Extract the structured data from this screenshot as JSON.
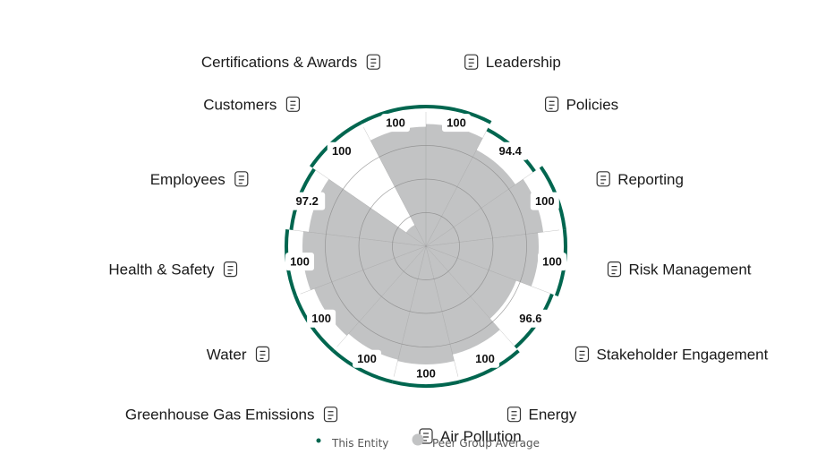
{
  "chart_data": {
    "type": "polar-area",
    "title": "",
    "rmax": 100,
    "categories": [
      "Leadership",
      "Policies",
      "Reporting",
      "Risk Management",
      "Stakeholder Engagement",
      "Energy",
      "Air Pollution",
      "Greenhouse Gas Emissions",
      "Water",
      "Health & Safety",
      "Employees",
      "Customers",
      "Certifications & Awards"
    ],
    "series": [
      {
        "name": "This Entity",
        "values": [
          100,
          94.4,
          100,
          100,
          96.6,
          100,
          100,
          100,
          100,
          100,
          97.2,
          100,
          100
        ]
      },
      {
        "name": "Peer Group Average",
        "values": [
          91,
          81,
          88,
          84,
          72,
          83,
          88,
          87,
          89,
          92,
          88,
          18,
          89
        ]
      }
    ],
    "value_labels": [
      "100",
      "94.4",
      "100",
      "100",
      "96.6",
      "100",
      "100",
      "100",
      "100",
      "100",
      "97.2",
      "100",
      "100"
    ],
    "icons": [
      "leadership-icon",
      "policies-icon",
      "reporting-icon",
      "risk-management-icon",
      "stakeholder-engagement-icon",
      "energy-icon",
      "air-pollution-icon",
      "greenhouse-gas-emissions-icon",
      "water-icon",
      "health-safety-icon",
      "employees-icon",
      "customers-icon",
      "certifications-awards-icon"
    ],
    "legend": {
      "placement": "bottom"
    },
    "colors": {
      "entity": "#00664f",
      "peer": "#c2c3c4",
      "grid": "#8a8a8a",
      "background": "#ffffff"
    }
  }
}
